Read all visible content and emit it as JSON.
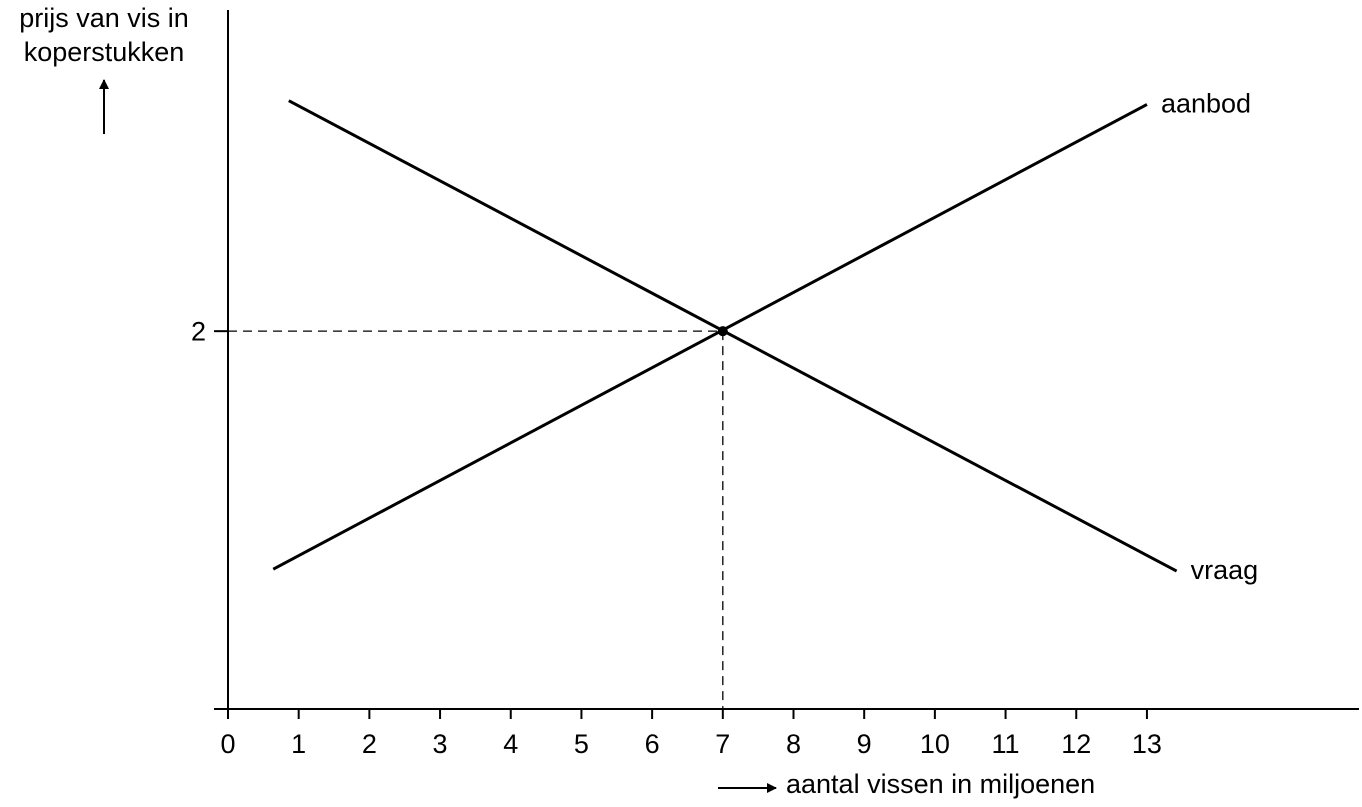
{
  "chart_data": {
    "type": "line",
    "ylabel": [
      "prijs van vis in",
      "koperstukken"
    ],
    "xlabel": "aantal vissen in miljoenen",
    "xlim": [
      0,
      16
    ],
    "ylim": [
      0,
      3.7
    ],
    "xticks": [
      0,
      1,
      2,
      3,
      4,
      5,
      6,
      7,
      8,
      9,
      10,
      11,
      12,
      13
    ],
    "yticks": [
      2
    ],
    "series": [
      {
        "name": "aanbod",
        "color": "#000000",
        "x": [
          0.64,
          13.0
        ],
        "values": [
          0.74,
          3.2
        ]
      },
      {
        "name": "vraag",
        "color": "#000000",
        "x": [
          0.86,
          13.42
        ],
        "values": [
          3.22,
          0.73
        ]
      }
    ],
    "points": [
      {
        "x": 7,
        "y": 2
      }
    ]
  }
}
